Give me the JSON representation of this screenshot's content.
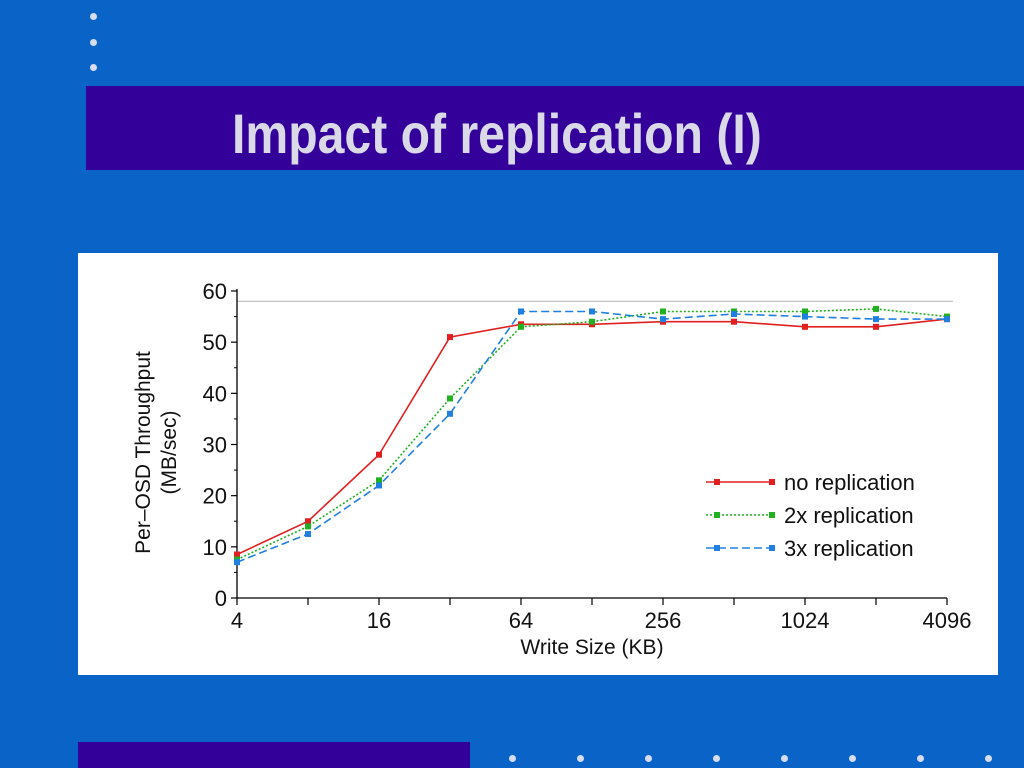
{
  "slide": {
    "title": "Impact of replication (I)",
    "background_color": "#0a64c8",
    "title_bar_color": "#330099",
    "dot_color": "#d8dcf0"
  },
  "chart_data": {
    "type": "line",
    "title": "",
    "xlabel": "Write Size (KB)",
    "ylabel_lines": [
      "Per–OSD Throughput",
      "(MB/sec)"
    ],
    "x_scale": "log2",
    "x": [
      4,
      8,
      16,
      32,
      64,
      128,
      256,
      512,
      1024,
      2048,
      4096
    ],
    "x_tick_labels": [
      "4",
      "",
      "16",
      "",
      "64",
      "",
      "256",
      "",
      "1024",
      "",
      "4096"
    ],
    "xlim": [
      4,
      4096
    ],
    "ylim": [
      0,
      60
    ],
    "y_ticks": [
      0,
      10,
      20,
      30,
      40,
      50,
      60
    ],
    "reference_line": {
      "y": 58,
      "color": "#b4b4b4"
    },
    "grid": false,
    "legend_position": "bottom-right",
    "series": [
      {
        "name": "no replication",
        "color": "#e02020",
        "dash": "solid",
        "values": [
          8.5,
          15,
          28,
          51,
          53.5,
          53.5,
          54,
          54,
          53,
          53,
          54.5
        ]
      },
      {
        "name": "2x replication",
        "color": "#20b020",
        "dash": "dotted",
        "values": [
          7.5,
          14,
          23,
          39,
          53,
          54,
          56,
          56,
          56,
          56.5,
          55
        ]
      },
      {
        "name": "3x replication",
        "color": "#2080e0",
        "dash": "dashed",
        "values": [
          7,
          12.5,
          22,
          36,
          56,
          56,
          54.5,
          55.5,
          55,
          54.5,
          54.5
        ]
      }
    ]
  }
}
